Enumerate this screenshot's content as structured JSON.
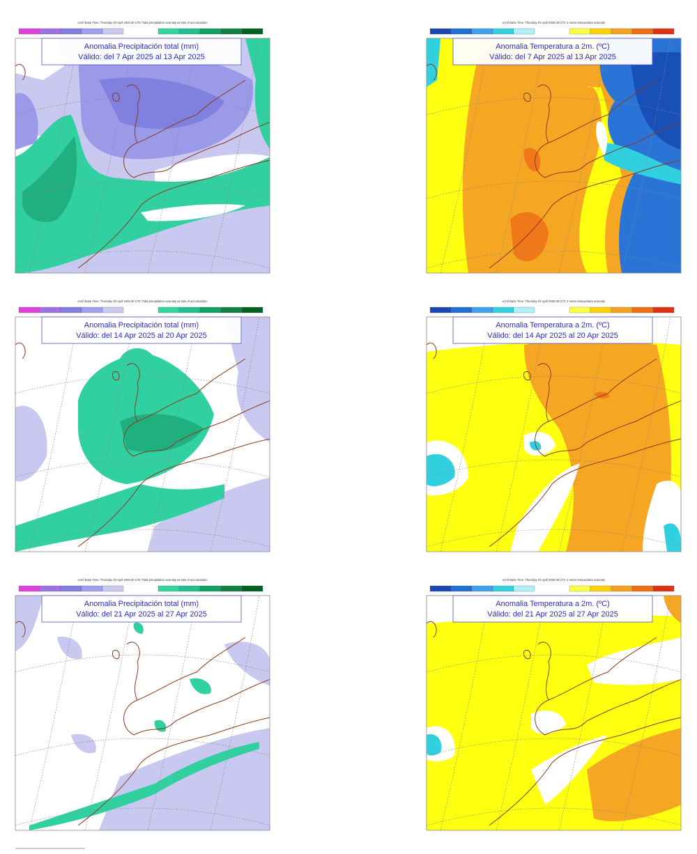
{
  "panels": [
    {
      "header": "ecmf Base Time: Thursday 03 April 2025 00 UTC Total precipitation anomaly as rate of accumulation",
      "title": "Anomalia Precipitación total (mm)",
      "subtitle": "Válido: del 7 Apr 2025 al 13 Apr 2025"
    },
    {
      "header": "ecmf Base Time: Thursday 03 April 2025 00 UTC 2 metre temperature anomaly",
      "title": "Anomalia Temperatura a 2m. (ºC)",
      "subtitle": "Válido: del 7 Apr 2025 al 13 Apr 2025"
    },
    {
      "header": "ecmf Base Time: Thursday 03 April 2025 00 UTC Total precipitation anomaly as rate of accumulation",
      "title": "Anomalia Precipitación total (mm)",
      "subtitle": "Válido: del 14 Apr 2025 al 20 Apr 2025"
    },
    {
      "header": "ecmf Base Time: Thursday 03 April 2025 00 UTC 2 metre temperature anomaly",
      "title": "Anomalia Temperatura a 2m. (ºC)",
      "subtitle": "Válido: del 14 Apr 2025 al 20 Apr 2025"
    },
    {
      "header": "ecmf Base Time: Thursday 03 April 2025 00 UTC Total precipitation anomaly as rate of accumulation",
      "title": "Anomalia Precipitación total (mm)",
      "subtitle": "Válido: del 21 Apr 2025 al 27 Apr 2025"
    },
    {
      "header": "ecmf Base Time: Thursday 03 April 2025 00 UTC 2 metre temperature anomaly",
      "title": "Anomalia Temperatura a 2m. (ºC)",
      "subtitle": "Válido: del 21 Apr 2025 al 27 Apr 2025"
    }
  ]
}
